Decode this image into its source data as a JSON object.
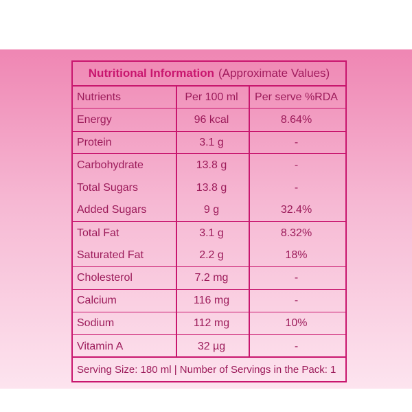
{
  "title": {
    "bold": "Nutritional Information",
    "light": "(Approximate Values)"
  },
  "columns": [
    "Nutrients",
    "Per 100 ml",
    "Per serve %RDA"
  ],
  "rows": [
    {
      "nutrient": "Energy",
      "per100": "96 kcal",
      "rda": "8.64%"
    },
    {
      "nutrient": "Protein",
      "per100": "3.1 g",
      "rda": "-"
    },
    {
      "nutrient": "Carbohydrate",
      "per100": "13.8 g",
      "rda": "-"
    },
    {
      "nutrient": "Total Sugars",
      "per100": "13.8 g",
      "rda": "-"
    },
    {
      "nutrient": "Added Sugars",
      "per100": "9 g",
      "rda": "32.4%"
    },
    {
      "nutrient": "Total Fat",
      "per100": "3.1 g",
      "rda": "8.32%"
    },
    {
      "nutrient": "Saturated Fat",
      "per100": "2.2 g",
      "rda": "18%"
    },
    {
      "nutrient": "Cholesterol",
      "per100": "7.2 mg",
      "rda": "-"
    },
    {
      "nutrient": "Calcium",
      "per100": "116 mg",
      "rda": "-"
    },
    {
      "nutrient": "Sodium",
      "per100": "112 mg",
      "rda": "10%"
    },
    {
      "nutrient": "Vitamin A",
      "per100": "32 µg",
      "rda": "-"
    }
  ],
  "footer": "Serving Size: 180 ml | Number of Servings in the Pack: 1",
  "colors": {
    "accent": "#c8166e",
    "text": "#9c1b5a"
  }
}
